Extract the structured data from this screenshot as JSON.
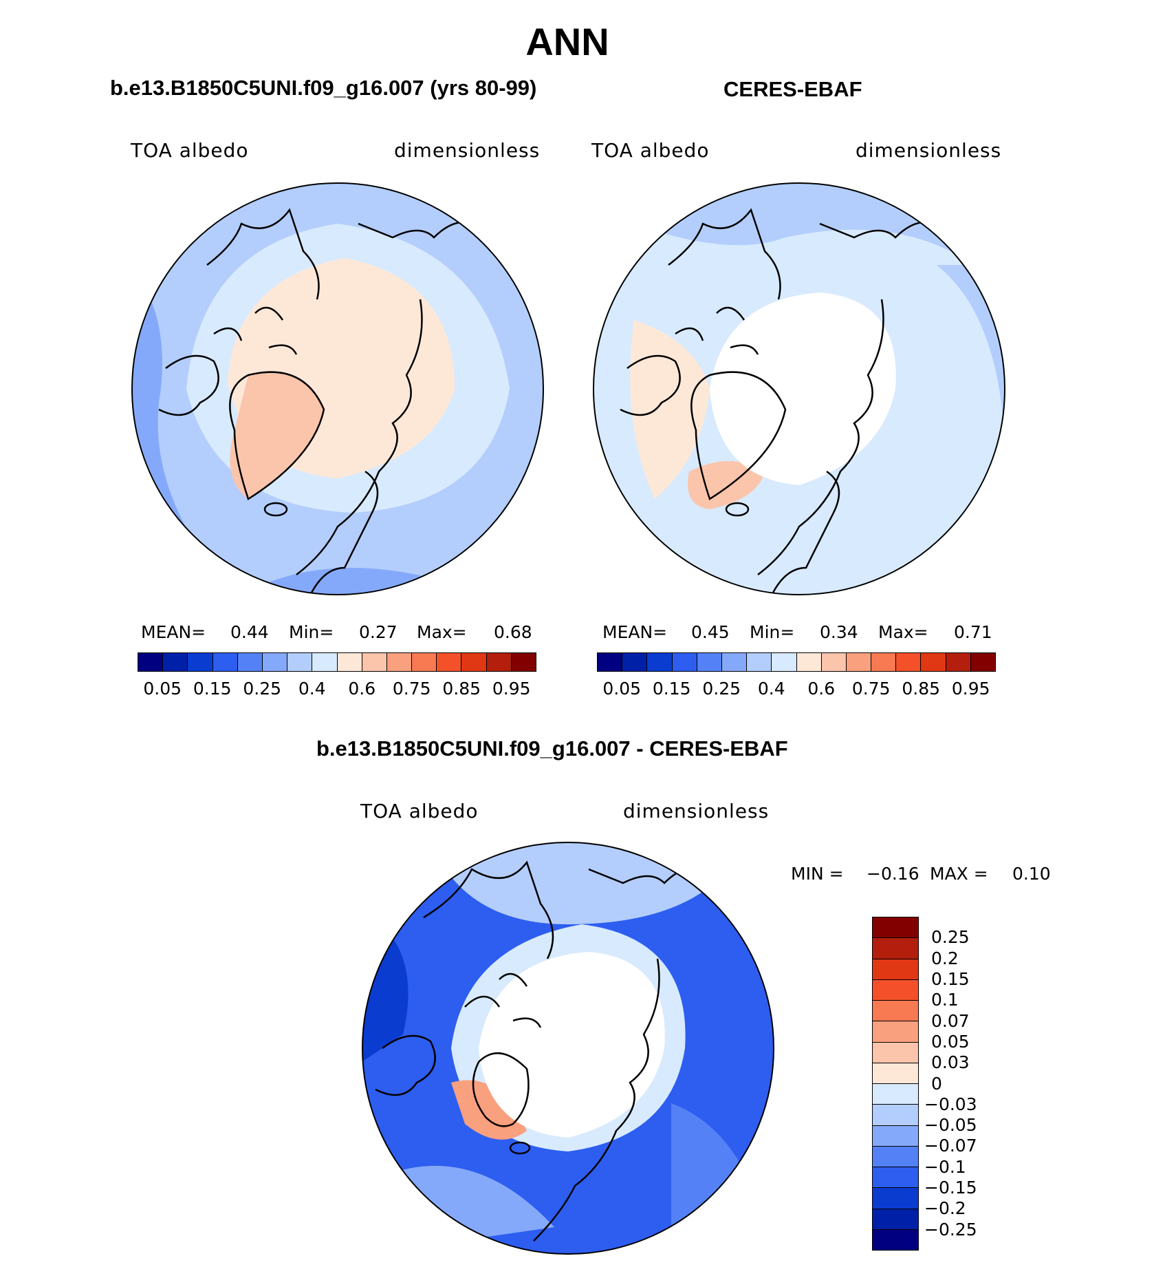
{
  "title": "ANN",
  "panels": [
    {
      "case_title": "b.e13.B1850C5UNI.f09_g16.007 (yrs 80-99)",
      "left_label": "TOA albedo",
      "right_label": "dimensionless",
      "mean_label": "MEAN=",
      "mean_value": "0.44",
      "min_label": "Min=",
      "min_value": "0.27",
      "max_label": "Max=",
      "max_value": "0.68"
    },
    {
      "case_title": "CERES-EBAF",
      "left_label": "TOA albedo",
      "right_label": "dimensionless",
      "mean_label": "MEAN=",
      "mean_value": "0.45",
      "min_label": "Min=",
      "min_value": "0.34",
      "max_label": "Max=",
      "max_value": "0.71"
    }
  ],
  "colorbar": {
    "colors": [
      "#000080",
      "#0020a8",
      "#0b3cd0",
      "#2d5ef0",
      "#5482f6",
      "#85a9fa",
      "#b3cefc",
      "#d8eafd",
      "#fde8d8",
      "#fbc5ab",
      "#f9a07f",
      "#f77a52",
      "#f4512a",
      "#e03814",
      "#b31f0c",
      "#820000"
    ],
    "ticks": [
      "0.05",
      "0.15",
      "0.25",
      "0.4",
      "0.6",
      "0.75",
      "0.85",
      "0.95"
    ]
  },
  "diff": {
    "title": "b.e13.B1850C5UNI.f09_g16.007 - CERES-EBAF",
    "left_label": "TOA albedo",
    "right_label": "dimensionless",
    "min_label": "MIN =",
    "min_value": "−0.16",
    "max_label": "MAX =",
    "max_value": "0.10",
    "colors": [
      "#820000",
      "#b31f0c",
      "#e03814",
      "#f4512a",
      "#f77a52",
      "#f9a07f",
      "#fbc5ab",
      "#fde8d8",
      "#d8eafd",
      "#b3cefc",
      "#85a9fa",
      "#5482f6",
      "#2d5ef0",
      "#0b3cd0",
      "#0020a8",
      "#000080"
    ],
    "ticks": [
      "0.25",
      "0.2",
      "0.15",
      "0.1",
      "0.07",
      "0.05",
      "0.03",
      "0",
      "−0.03",
      "−0.05",
      "−0.07",
      "−0.1",
      "−0.15",
      "−0.2",
      "−0.25"
    ]
  }
}
